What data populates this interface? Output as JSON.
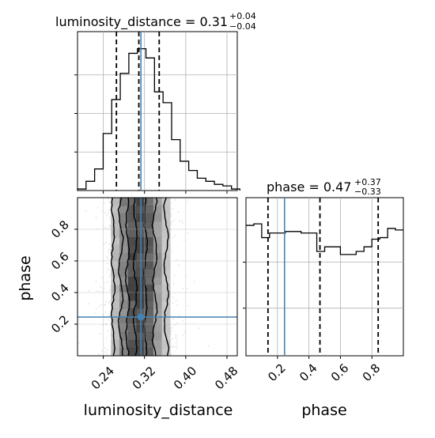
{
  "chart_data": [
    {
      "type": "histogram",
      "panel": "luminosity_distance marginal",
      "title": {
        "base": "luminosity_distance = 0.31",
        "sup": "+0.04",
        "sub": "−0.04"
      },
      "xlim": [
        0.19,
        0.5
      ],
      "grid": true,
      "bins": [
        0.19,
        0.2066,
        0.2232,
        0.2398,
        0.2564,
        0.273,
        0.2896,
        0.3062,
        0.3228,
        0.3394,
        0.356,
        0.3726,
        0.3892,
        0.4058,
        0.4224,
        0.439,
        0.4556,
        0.4722,
        0.4888,
        0.505
      ],
      "counts": [
        1,
        6,
        14,
        37,
        59,
        76,
        89,
        92,
        86,
        64,
        57,
        33,
        19,
        13,
        8,
        6,
        4,
        3,
        1
      ],
      "quantile_lines": [
        0.2655,
        0.309,
        0.3485
      ],
      "truth": 0.313
    },
    {
      "type": "histogram",
      "panel": "phase marginal",
      "title": {
        "base": "phase = 0.47",
        "sup": "+0.37",
        "sub": "−0.33"
      },
      "xlim": [
        0.0,
        1.0
      ],
      "grid": true,
      "bins": [
        0,
        0.05,
        0.1,
        0.15,
        0.2,
        0.25,
        0.3,
        0.35,
        0.4,
        0.45,
        0.5,
        0.55,
        0.6,
        0.65,
        0.7,
        0.75,
        0.8,
        0.85,
        0.9,
        0.95,
        1.0
      ],
      "counts": [
        84,
        85,
        76,
        79,
        79,
        80,
        80,
        79,
        79,
        67,
        70,
        70,
        65,
        65,
        67,
        70,
        75,
        76,
        82,
        81
      ],
      "quantile_lines": [
        0.14,
        0.47,
        0.84
      ],
      "truth": 0.245
    },
    {
      "type": "scatter",
      "panel": "2d density",
      "xlabel": "luminosity_distance",
      "ylabel": "phase",
      "xlim": [
        0.19,
        0.5
      ],
      "ylim": [
        0.0,
        1.0
      ],
      "x_ticks": [
        "0.24",
        "0.32",
        "0.40",
        "0.48"
      ],
      "y_ticks": [
        "0.2",
        "0.4",
        "0.6",
        "0.8"
      ],
      "grid": true,
      "truth": {
        "x": 0.313,
        "y": 0.245
      }
    },
    {
      "type": "axis",
      "panel": "phase axis",
      "xlabel": "phase",
      "x_ticks": [
        "0.2",
        "0.4",
        "0.6",
        "0.8"
      ]
    }
  ],
  "colors": {
    "truth": "#4682b4",
    "histogram": "#000000",
    "scatter": "#9a9a9a",
    "grid": "#b0b0b0"
  }
}
